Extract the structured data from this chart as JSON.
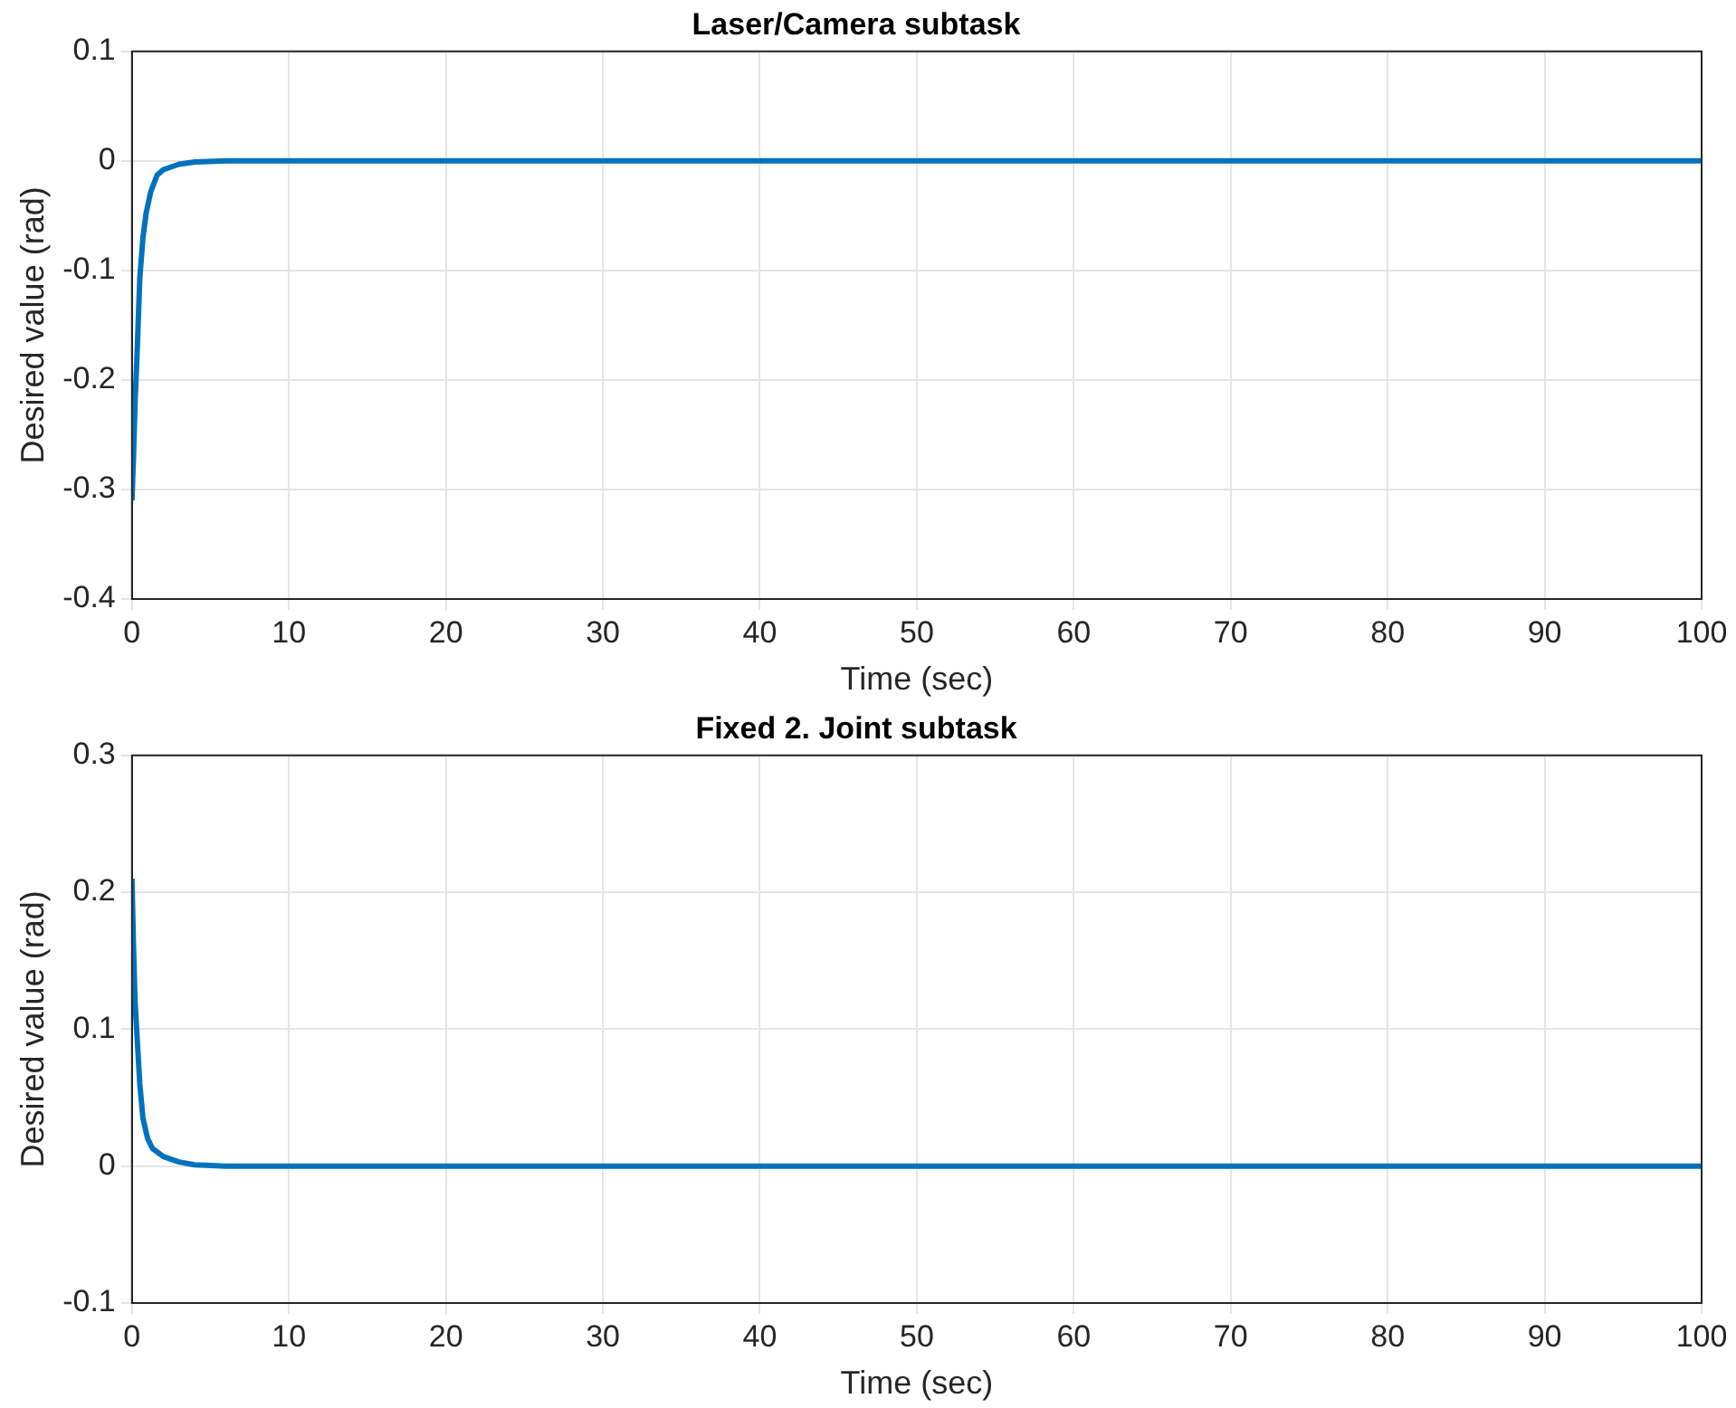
{
  "chart_data": [
    {
      "type": "line",
      "title": "Laser/Camera subtask",
      "xlabel": "Time (sec)",
      "ylabel": "Desired value (rad)",
      "series": [
        {
          "color": "#0072bd",
          "x": [
            0,
            0.1,
            0.2,
            0.3,
            0.5,
            0.7,
            0.9,
            1.2,
            1.6,
            2,
            3,
            4,
            6,
            10,
            20,
            40,
            60,
            80,
            100
          ],
          "values": [
            -0.31,
            -0.27,
            -0.22,
            -0.186,
            -0.107,
            -0.07,
            -0.048,
            -0.028,
            -0.013,
            -0.008,
            -0.003,
            -0.001,
            0,
            0,
            0,
            0,
            0,
            0,
            0
          ]
        }
      ],
      "xlim": [
        0,
        100
      ],
      "xticks": [
        0,
        10,
        20,
        30,
        40,
        50,
        60,
        70,
        80,
        90,
        100
      ],
      "ylim": [
        -0.4,
        0.1
      ],
      "yticks": [
        -0.4,
        -0.3,
        -0.2,
        -0.1,
        0,
        0.1
      ],
      "grid": true,
      "line_style": "solid",
      "marker": "none"
    },
    {
      "type": "line",
      "title": "Fixed 2. Joint subtask",
      "xlabel": "Time (sec)",
      "ylabel": "Desired value (rad)",
      "series": [
        {
          "color": "#0072bd",
          "x": [
            0,
            0.1,
            0.2,
            0.3,
            0.5,
            0.7,
            1,
            1.3,
            2,
            3,
            4,
            6,
            10,
            20,
            40,
            60,
            80,
            100
          ],
          "values": [
            0.21,
            0.16,
            0.12,
            0.1,
            0.06,
            0.035,
            0.02,
            0.013,
            0.007,
            0.003,
            0.001,
            0,
            0,
            0,
            0,
            0,
            0,
            0
          ]
        }
      ],
      "xlim": [
        0,
        100
      ],
      "xticks": [
        0,
        10,
        20,
        30,
        40,
        50,
        60,
        70,
        80,
        90,
        100
      ],
      "ylim": [
        -0.1,
        0.3
      ],
      "yticks": [
        -0.1,
        0,
        0.1,
        0.2,
        0.3
      ],
      "grid": true,
      "line_style": "solid",
      "marker": "none"
    }
  ]
}
